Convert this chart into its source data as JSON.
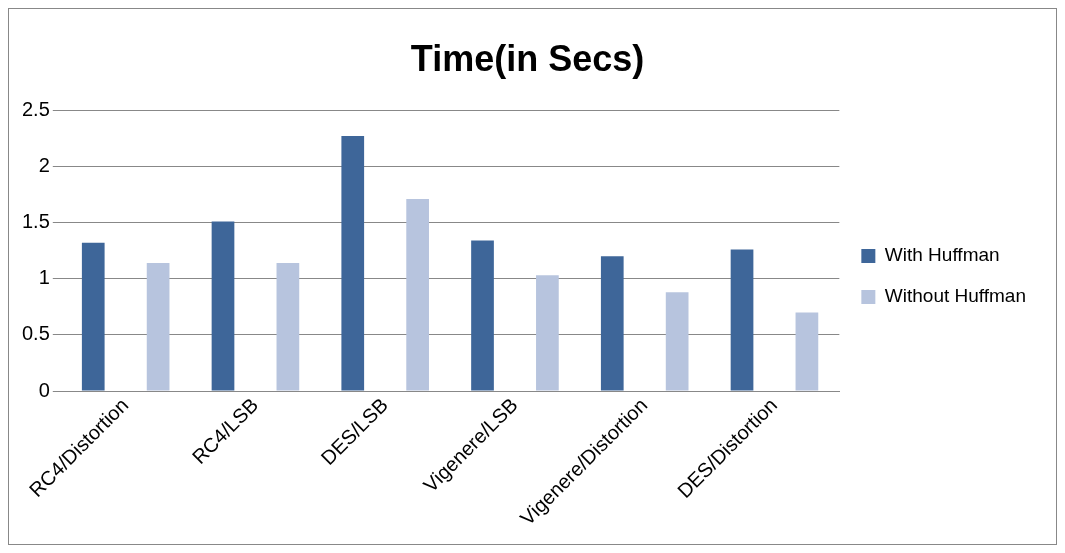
{
  "chart_data": {
    "type": "bar",
    "title": "Time(in Secs)",
    "categories": [
      "RC4/Distortion",
      "RC4/LSB",
      "DES/LSB",
      "Vigenere/LSB",
      "Vigenere/Distortion",
      "DES/Distortion"
    ],
    "series": [
      {
        "name": "With Huffman",
        "color": "#3e6699",
        "values": [
          1.32,
          1.51,
          2.27,
          1.34,
          1.2,
          1.26
        ]
      },
      {
        "name": "Without Huffman",
        "color": "#b7c4de",
        "values": [
          1.14,
          1.14,
          1.71,
          1.03,
          0.88,
          0.7
        ]
      }
    ],
    "ylim": [
      0,
      2.5
    ],
    "yticks": [
      0,
      0.5,
      1,
      1.5,
      2,
      2.5
    ],
    "grid": "y",
    "legend": "right"
  }
}
